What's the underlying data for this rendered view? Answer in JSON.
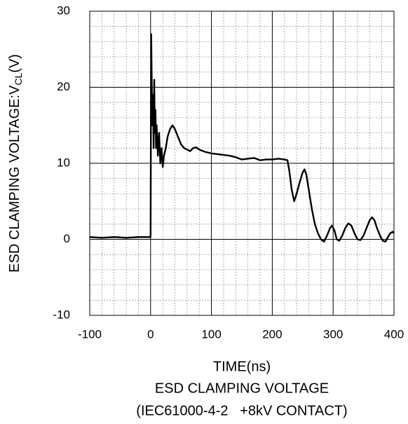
{
  "chart_data": {
    "type": "line",
    "title": [
      "ESD CLAMPING VOLTAGE",
      "(IEC61000-4-2   +8kV CONTACT)"
    ],
    "xlabel": "TIME(ns)",
    "ylabel": [
      "ESD CLAMPING VOLTAGE:V",
      "CL",
      "(V)"
    ],
    "x": [
      -100,
      -80,
      -60,
      -40,
      -20,
      -2,
      0,
      1,
      2,
      3,
      4,
      5,
      6,
      7,
      8,
      9,
      10,
      12,
      14,
      16,
      18,
      20,
      22,
      25,
      28,
      32,
      36,
      40,
      45,
      50,
      55,
      60,
      65,
      70,
      75,
      80,
      90,
      100,
      110,
      120,
      130,
      140,
      150,
      160,
      170,
      180,
      190,
      200,
      210,
      220,
      225,
      228,
      232,
      236,
      240,
      245,
      250,
      253,
      256,
      260,
      265,
      270,
      275,
      280,
      285,
      290,
      295,
      298,
      302,
      306,
      310,
      315,
      320,
      325,
      330,
      335,
      340,
      345,
      350,
      355,
      360,
      364,
      368,
      372,
      378,
      382,
      386,
      390,
      394,
      398,
      400
    ],
    "values": [
      0.3,
      0.2,
      0.3,
      0.2,
      0.3,
      0.3,
      0.3,
      27,
      20,
      15,
      19,
      12,
      21,
      14,
      17,
      12,
      15,
      11,
      14,
      10,
      12,
      9.5,
      11,
      12,
      13.5,
      14.5,
      15,
      14.5,
      13.5,
      12.5,
      12,
      11.8,
      11.6,
      12,
      12.1,
      11.8,
      11.5,
      11.3,
      11.2,
      11.1,
      11,
      10.8,
      10.5,
      10.6,
      10.7,
      10.4,
      10.5,
      10.5,
      10.6,
      10.5,
      10.4,
      9,
      6.5,
      5,
      6,
      7.5,
      8.8,
      9.2,
      8.5,
      6.5,
      4,
      2,
      0.8,
      0,
      -0.3,
      0.5,
      1.5,
      1.8,
      1.2,
      0,
      -0.2,
      0.5,
      1.5,
      2.1,
      1.8,
      0.8,
      0,
      -0.1,
      0.5,
      1.5,
      2.5,
      2.9,
      2.5,
      1.5,
      0.3,
      -0.2,
      -0.3,
      0.3,
      0.8,
      1.0,
      0.8
    ],
    "color": "#000000",
    "xlim": [
      -100,
      400
    ],
    "xticks": [
      -100,
      0,
      100,
      200,
      300,
      400
    ],
    "ylim": [
      -10,
      30
    ],
    "yticks": [
      -10,
      0,
      10,
      20,
      30
    ],
    "grid": true,
    "minor_grid": true
  }
}
